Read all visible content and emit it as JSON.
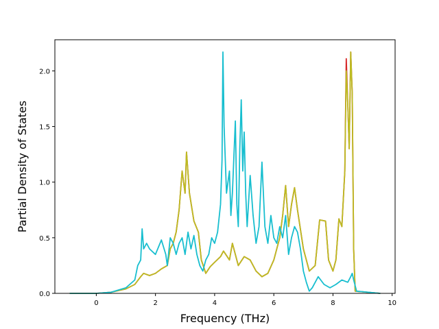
{
  "chart_data": {
    "type": "line",
    "title": "",
    "xlabel": "Frequency (THz)",
    "ylabel": "Partial Density of States",
    "xlim": [
      -1.4,
      10.1
    ],
    "ylim": [
      0,
      2.28
    ],
    "xticks": [
      0,
      2,
      4,
      6,
      8,
      10
    ],
    "yticks": [
      0.0,
      0.5,
      1.0,
      1.5,
      2.0
    ],
    "xtick_labels": [
      "0",
      "2",
      "4",
      "6",
      "8",
      "10"
    ],
    "ytick_labels": [
      "0.0",
      "0.5",
      "1.0",
      "1.5",
      "2.0"
    ],
    "grid": false,
    "series": [
      {
        "color": "#d62728",
        "points": [
          [
            -0.9,
            0
          ],
          [
            0,
            0
          ],
          [
            0.5,
            0.01
          ],
          [
            1.0,
            0.04
          ],
          [
            1.3,
            0.08
          ],
          [
            1.5,
            0.15
          ],
          [
            1.6,
            0.18
          ],
          [
            1.8,
            0.16
          ],
          [
            2.0,
            0.18
          ],
          [
            2.2,
            0.22
          ],
          [
            2.4,
            0.25
          ],
          [
            2.5,
            0.4
          ],
          [
            2.6,
            0.45
          ],
          [
            2.7,
            0.55
          ],
          [
            2.8,
            0.75
          ],
          [
            2.9,
            1.1
          ],
          [
            3.0,
            0.9
          ],
          [
            3.05,
            1.27
          ],
          [
            3.15,
            0.9
          ],
          [
            3.3,
            0.65
          ],
          [
            3.45,
            0.55
          ],
          [
            3.55,
            0.3
          ],
          [
            3.7,
            0.18
          ],
          [
            3.85,
            0.24
          ],
          [
            4.0,
            0.28
          ],
          [
            4.2,
            0.33
          ],
          [
            4.3,
            0.38
          ],
          [
            4.5,
            0.3
          ],
          [
            4.6,
            0.45
          ],
          [
            4.7,
            0.35
          ],
          [
            4.8,
            0.25
          ],
          [
            5.0,
            0.33
          ],
          [
            5.2,
            0.3
          ],
          [
            5.4,
            0.2
          ],
          [
            5.6,
            0.15
          ],
          [
            5.8,
            0.18
          ],
          [
            6.0,
            0.3
          ],
          [
            6.2,
            0.5
          ],
          [
            6.3,
            0.7
          ],
          [
            6.4,
            0.97
          ],
          [
            6.5,
            0.6
          ],
          [
            6.6,
            0.8
          ],
          [
            6.7,
            0.95
          ],
          [
            6.8,
            0.75
          ],
          [
            7.0,
            0.4
          ],
          [
            7.2,
            0.2
          ],
          [
            7.4,
            0.25
          ],
          [
            7.55,
            0.66
          ],
          [
            7.75,
            0.65
          ],
          [
            7.85,
            0.3
          ],
          [
            8.0,
            0.2
          ],
          [
            8.1,
            0.3
          ],
          [
            8.2,
            0.67
          ],
          [
            8.3,
            0.6
          ],
          [
            8.4,
            1.1
          ],
          [
            8.45,
            2.11
          ],
          [
            8.5,
            1.7
          ],
          [
            8.55,
            1.3
          ],
          [
            8.6,
            2.17
          ],
          [
            8.65,
            1.8
          ],
          [
            8.7,
            0.4
          ],
          [
            8.75,
            0.02
          ],
          [
            9.6,
            0
          ]
        ]
      },
      {
        "color": "#bcbd22",
        "points": [
          [
            -0.9,
            0
          ],
          [
            0,
            0
          ],
          [
            0.5,
            0.01
          ],
          [
            1.0,
            0.04
          ],
          [
            1.3,
            0.08
          ],
          [
            1.5,
            0.15
          ],
          [
            1.6,
            0.18
          ],
          [
            1.8,
            0.16
          ],
          [
            2.0,
            0.18
          ],
          [
            2.2,
            0.22
          ],
          [
            2.4,
            0.25
          ],
          [
            2.5,
            0.4
          ],
          [
            2.6,
            0.45
          ],
          [
            2.7,
            0.55
          ],
          [
            2.8,
            0.75
          ],
          [
            2.9,
            1.1
          ],
          [
            3.0,
            0.9
          ],
          [
            3.05,
            1.27
          ],
          [
            3.15,
            0.9
          ],
          [
            3.3,
            0.65
          ],
          [
            3.45,
            0.55
          ],
          [
            3.55,
            0.3
          ],
          [
            3.7,
            0.18
          ],
          [
            3.85,
            0.24
          ],
          [
            4.0,
            0.28
          ],
          [
            4.2,
            0.33
          ],
          [
            4.3,
            0.38
          ],
          [
            4.5,
            0.3
          ],
          [
            4.6,
            0.45
          ],
          [
            4.7,
            0.35
          ],
          [
            4.8,
            0.25
          ],
          [
            5.0,
            0.33
          ],
          [
            5.2,
            0.3
          ],
          [
            5.4,
            0.2
          ],
          [
            5.6,
            0.15
          ],
          [
            5.8,
            0.18
          ],
          [
            6.0,
            0.3
          ],
          [
            6.2,
            0.5
          ],
          [
            6.3,
            0.7
          ],
          [
            6.4,
            0.97
          ],
          [
            6.5,
            0.6
          ],
          [
            6.6,
            0.8
          ],
          [
            6.7,
            0.95
          ],
          [
            6.8,
            0.75
          ],
          [
            7.0,
            0.4
          ],
          [
            7.2,
            0.2
          ],
          [
            7.4,
            0.25
          ],
          [
            7.55,
            0.66
          ],
          [
            7.75,
            0.65
          ],
          [
            7.85,
            0.3
          ],
          [
            8.0,
            0.2
          ],
          [
            8.1,
            0.3
          ],
          [
            8.2,
            0.67
          ],
          [
            8.3,
            0.6
          ],
          [
            8.4,
            1.1
          ],
          [
            8.45,
            2.0
          ],
          [
            8.5,
            1.7
          ],
          [
            8.55,
            1.3
          ],
          [
            8.6,
            2.17
          ],
          [
            8.65,
            1.8
          ],
          [
            8.7,
            0.4
          ],
          [
            8.75,
            0.02
          ],
          [
            9.6,
            0
          ]
        ]
      },
      {
        "color": "#17becf",
        "points": [
          [
            -0.9,
            0
          ],
          [
            0,
            0
          ],
          [
            0.5,
            0.01
          ],
          [
            1.0,
            0.05
          ],
          [
            1.3,
            0.12
          ],
          [
            1.4,
            0.25
          ],
          [
            1.5,
            0.3
          ],
          [
            1.55,
            0.58
          ],
          [
            1.6,
            0.4
          ],
          [
            1.7,
            0.45
          ],
          [
            1.8,
            0.4
          ],
          [
            2.0,
            0.35
          ],
          [
            2.2,
            0.48
          ],
          [
            2.35,
            0.35
          ],
          [
            2.4,
            0.25
          ],
          [
            2.5,
            0.5
          ],
          [
            2.6,
            0.45
          ],
          [
            2.7,
            0.35
          ],
          [
            2.8,
            0.45
          ],
          [
            2.9,
            0.5
          ],
          [
            3.0,
            0.35
          ],
          [
            3.1,
            0.55
          ],
          [
            3.2,
            0.4
          ],
          [
            3.3,
            0.52
          ],
          [
            3.4,
            0.35
          ],
          [
            3.5,
            0.25
          ],
          [
            3.6,
            0.2
          ],
          [
            3.7,
            0.3
          ],
          [
            3.8,
            0.35
          ],
          [
            3.9,
            0.5
          ],
          [
            4.0,
            0.45
          ],
          [
            4.1,
            0.55
          ],
          [
            4.2,
            0.8
          ],
          [
            4.25,
            1.2
          ],
          [
            4.28,
            2.17
          ],
          [
            4.32,
            1.5
          ],
          [
            4.4,
            0.9
          ],
          [
            4.5,
            1.1
          ],
          [
            4.55,
            0.7
          ],
          [
            4.6,
            0.9
          ],
          [
            4.7,
            1.55
          ],
          [
            4.75,
            0.8
          ],
          [
            4.8,
            0.6
          ],
          [
            4.85,
            1.3
          ],
          [
            4.9,
            1.74
          ],
          [
            4.95,
            1.1
          ],
          [
            5.0,
            1.45
          ],
          [
            5.05,
            0.9
          ],
          [
            5.1,
            0.6
          ],
          [
            5.2,
            1.06
          ],
          [
            5.3,
            0.7
          ],
          [
            5.4,
            0.45
          ],
          [
            5.5,
            0.6
          ],
          [
            5.6,
            1.18
          ],
          [
            5.7,
            0.6
          ],
          [
            5.8,
            0.45
          ],
          [
            5.9,
            0.7
          ],
          [
            6.0,
            0.5
          ],
          [
            6.1,
            0.45
          ],
          [
            6.2,
            0.6
          ],
          [
            6.3,
            0.5
          ],
          [
            6.4,
            0.7
          ],
          [
            6.5,
            0.35
          ],
          [
            6.6,
            0.5
          ],
          [
            6.7,
            0.6
          ],
          [
            6.8,
            0.55
          ],
          [
            6.9,
            0.4
          ],
          [
            7.0,
            0.2
          ],
          [
            7.1,
            0.1
          ],
          [
            7.2,
            0.02
          ],
          [
            7.3,
            0.05
          ],
          [
            7.5,
            0.15
          ],
          [
            7.7,
            0.08
          ],
          [
            7.9,
            0.05
          ],
          [
            8.1,
            0.08
          ],
          [
            8.3,
            0.12
          ],
          [
            8.5,
            0.1
          ],
          [
            8.6,
            0.15
          ],
          [
            8.65,
            0.18
          ],
          [
            8.7,
            0.12
          ],
          [
            8.8,
            0.02
          ],
          [
            9.6,
            0
          ]
        ]
      }
    ]
  }
}
